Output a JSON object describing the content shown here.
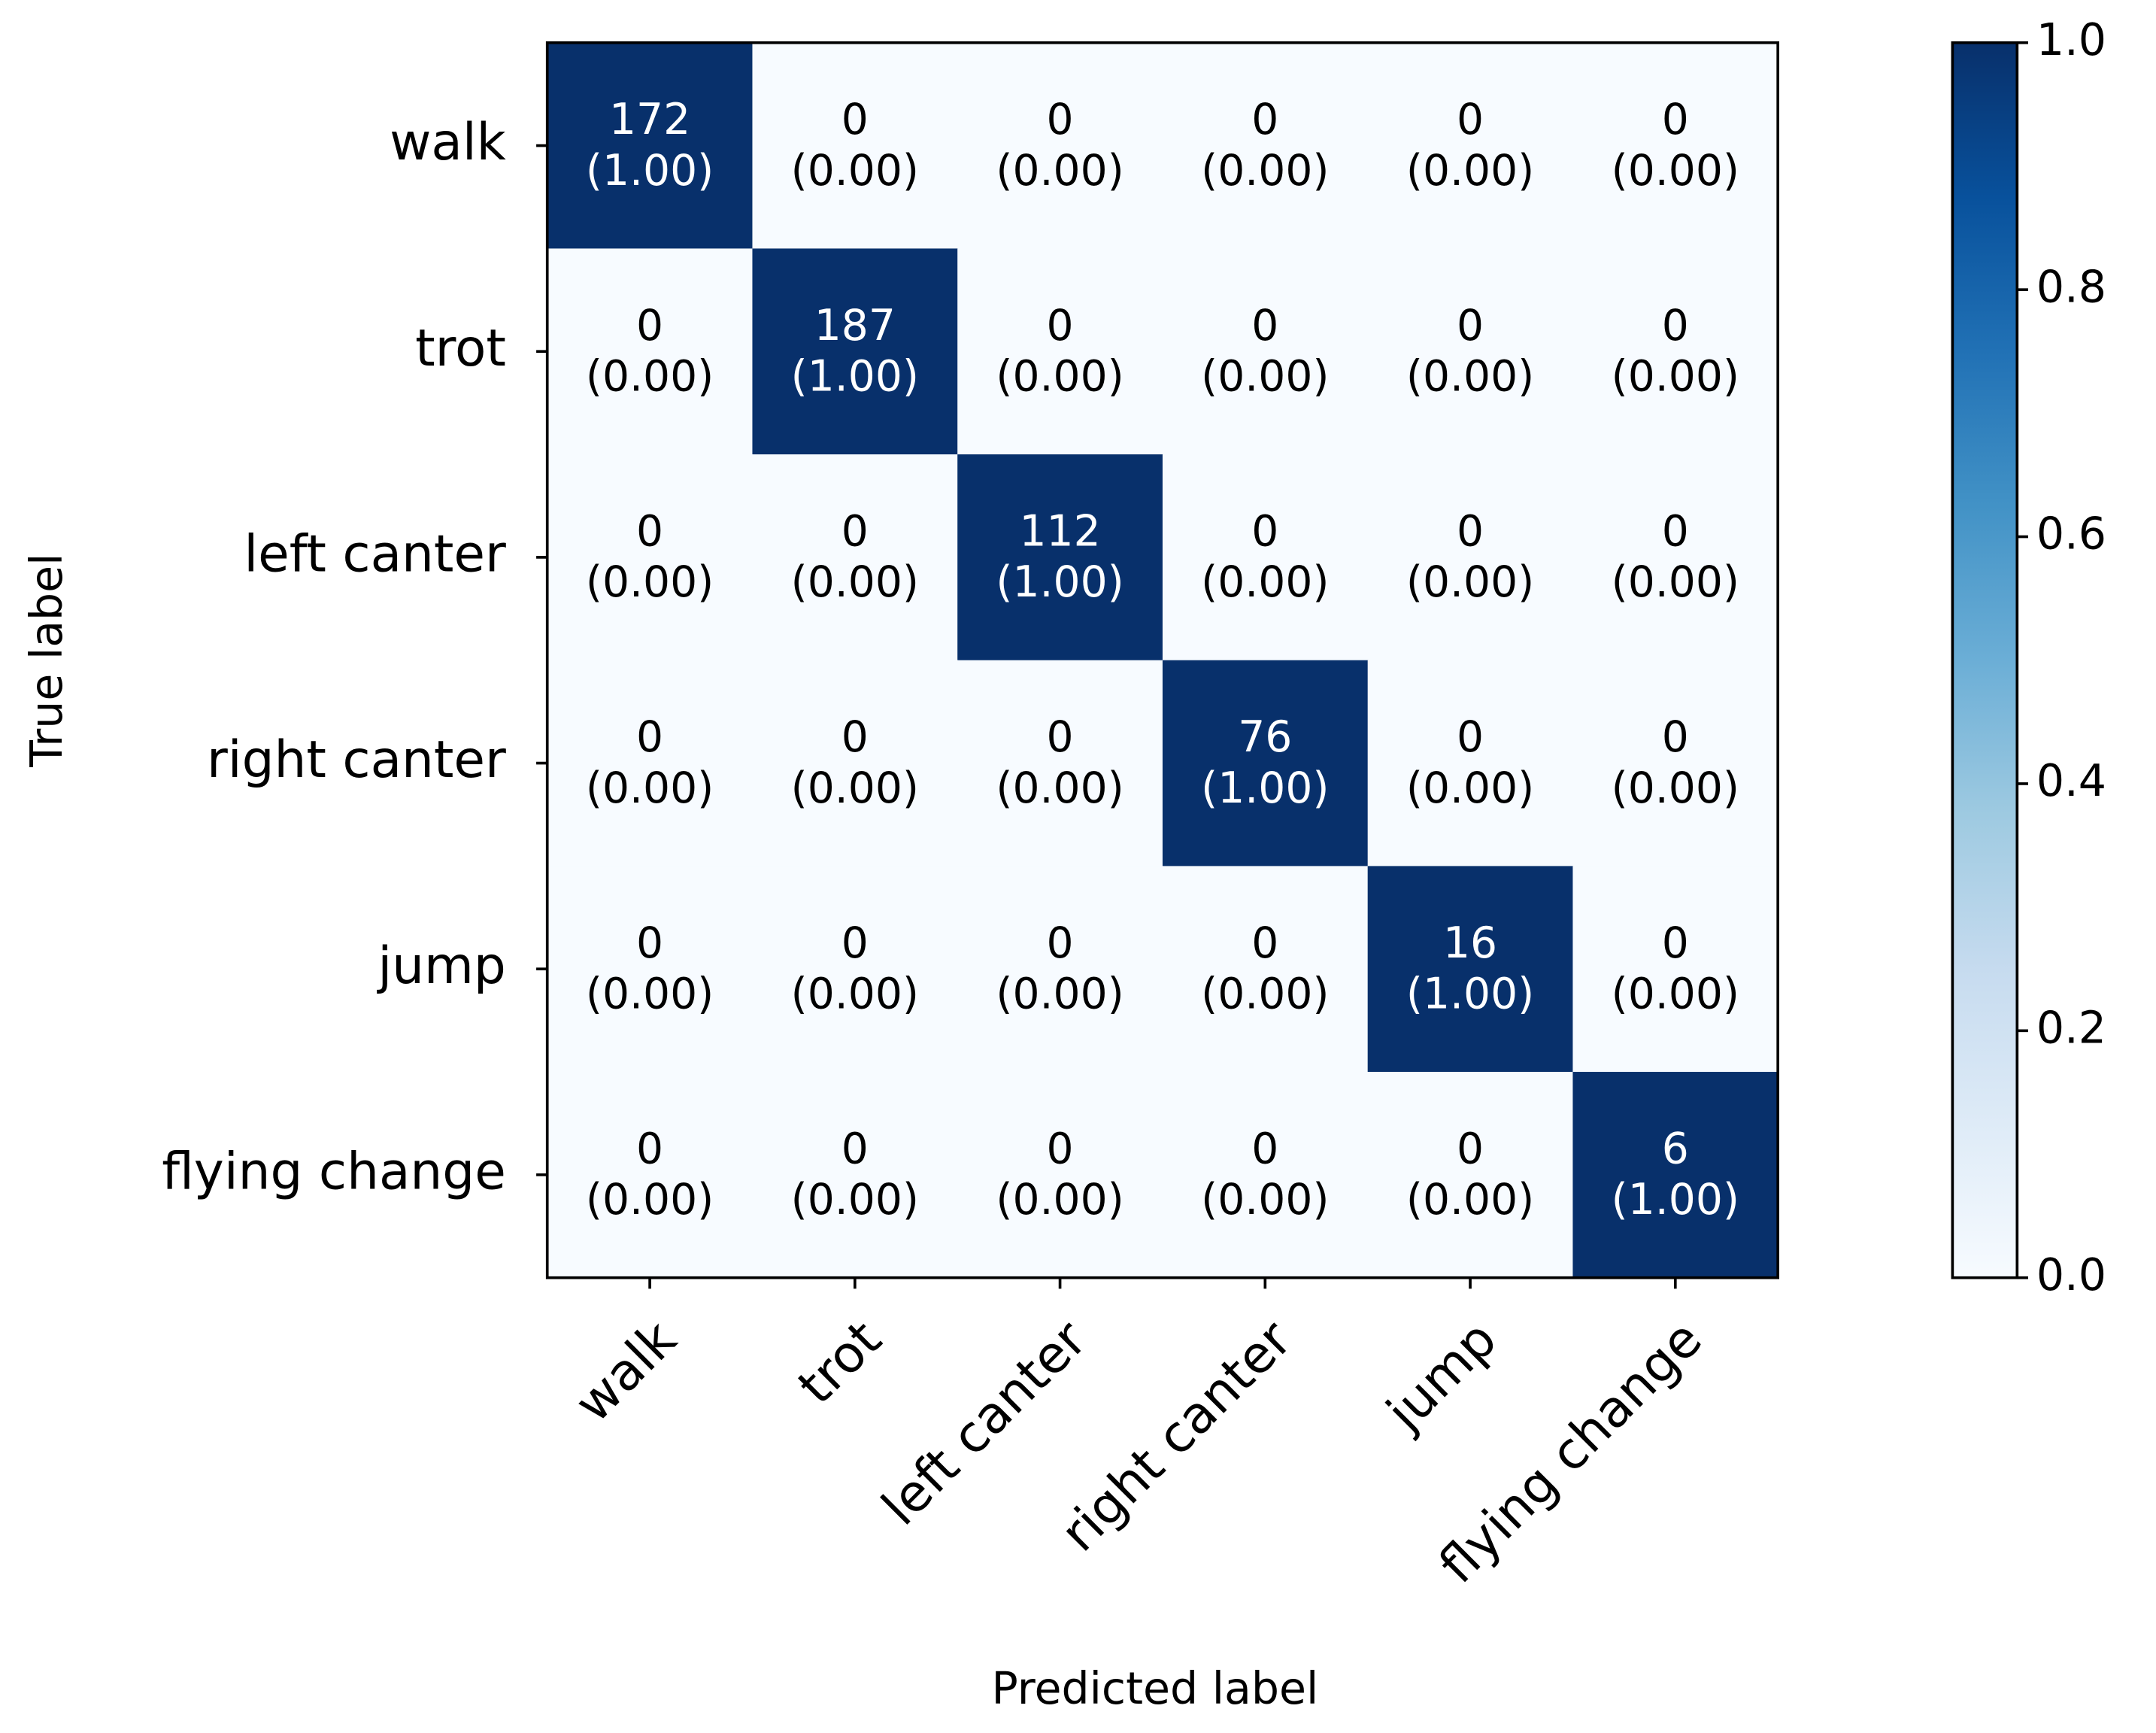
{
  "chart_data": {
    "type": "heatmap",
    "x_label": "Predicted label",
    "y_label": "True label",
    "categories": [
      "walk",
      "trot",
      "left canter",
      "right canter",
      "jump",
      "flying change"
    ],
    "counts": [
      [
        172,
        0,
        0,
        0,
        0,
        0
      ],
      [
        0,
        187,
        0,
        0,
        0,
        0
      ],
      [
        0,
        0,
        112,
        0,
        0,
        0
      ],
      [
        0,
        0,
        0,
        76,
        0,
        0
      ],
      [
        0,
        0,
        0,
        0,
        16,
        0
      ],
      [
        0,
        0,
        0,
        0,
        0,
        6
      ]
    ],
    "values": [
      [
        1,
        0,
        0,
        0,
        0,
        0
      ],
      [
        0,
        1,
        0,
        0,
        0,
        0
      ],
      [
        0,
        0,
        1,
        0,
        0,
        0
      ],
      [
        0,
        0,
        0,
        1,
        0,
        0
      ],
      [
        0,
        0,
        0,
        0,
        1,
        0
      ],
      [
        0,
        0,
        0,
        0,
        0,
        1
      ]
    ],
    "value_labels": [
      [
        "(1.00)",
        "(0.00)",
        "(0.00)",
        "(0.00)",
        "(0.00)",
        "(0.00)"
      ],
      [
        "(0.00)",
        "(1.00)",
        "(0.00)",
        "(0.00)",
        "(0.00)",
        "(0.00)"
      ],
      [
        "(0.00)",
        "(0.00)",
        "(1.00)",
        "(0.00)",
        "(0.00)",
        "(0.00)"
      ],
      [
        "(0.00)",
        "(0.00)",
        "(0.00)",
        "(1.00)",
        "(0.00)",
        "(0.00)"
      ],
      [
        "(0.00)",
        "(0.00)",
        "(0.00)",
        "(0.00)",
        "(1.00)",
        "(0.00)"
      ],
      [
        "(0.00)",
        "(0.00)",
        "(0.00)",
        "(0.00)",
        "(0.00)",
        "(1.00)"
      ]
    ],
    "colorbar_lim": [
      0,
      1
    ],
    "colorbar_ticks": [
      {
        "value": 0,
        "label": "0.0"
      },
      {
        "value": 0.2,
        "label": "0.2"
      },
      {
        "value": 0.4,
        "label": "0.4"
      },
      {
        "value": 0.6,
        "label": "0.6"
      },
      {
        "value": 0.8,
        "label": "0.8"
      },
      {
        "value": 1,
        "label": "1.0"
      }
    ],
    "colormap": [
      "#f7fbff",
      "#deebf7",
      "#c6dbef",
      "#9ecae1",
      "#6baed6",
      "#4292c6",
      "#2171b5",
      "#08519c",
      "#08306b"
    ]
  }
}
